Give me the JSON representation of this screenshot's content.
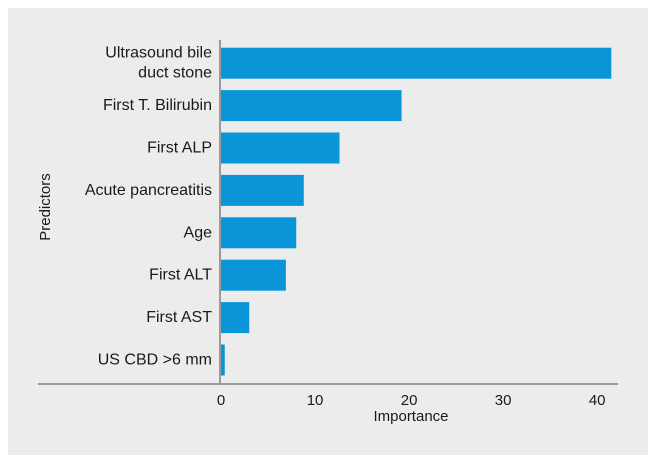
{
  "chart_data": {
    "type": "bar",
    "orientation": "horizontal",
    "categories": [
      "Ultrasound bile duct stone",
      "First T. Bilirubin",
      "First ALP",
      "Acute pancreatitis",
      "Age",
      "First ALT",
      "First AST",
      "US CBD >6 mm"
    ],
    "category_lines": [
      [
        "Ultrasound bile",
        "duct stone"
      ],
      [
        "First T. Bilirubin"
      ],
      [
        "First ALP"
      ],
      [
        "Acute pancreatitis"
      ],
      [
        "Age"
      ],
      [
        "First ALT"
      ],
      [
        "First AST"
      ],
      [
        "US CBD >6 mm"
      ]
    ],
    "values": [
      41.5,
      19.2,
      12.6,
      8.8,
      8.0,
      6.9,
      3.0,
      0.4
    ],
    "xlabel": "Importance",
    "ylabel": "Predictors",
    "xlim": [
      0,
      42
    ],
    "xticks": [
      0,
      10,
      20,
      30,
      40
    ],
    "grid": false,
    "legend": "none",
    "colors": {
      "panel_background": "#ececec",
      "bar": "#0b95d9",
      "axis": "#9a9a9a",
      "text": "#1a1a1a"
    }
  }
}
